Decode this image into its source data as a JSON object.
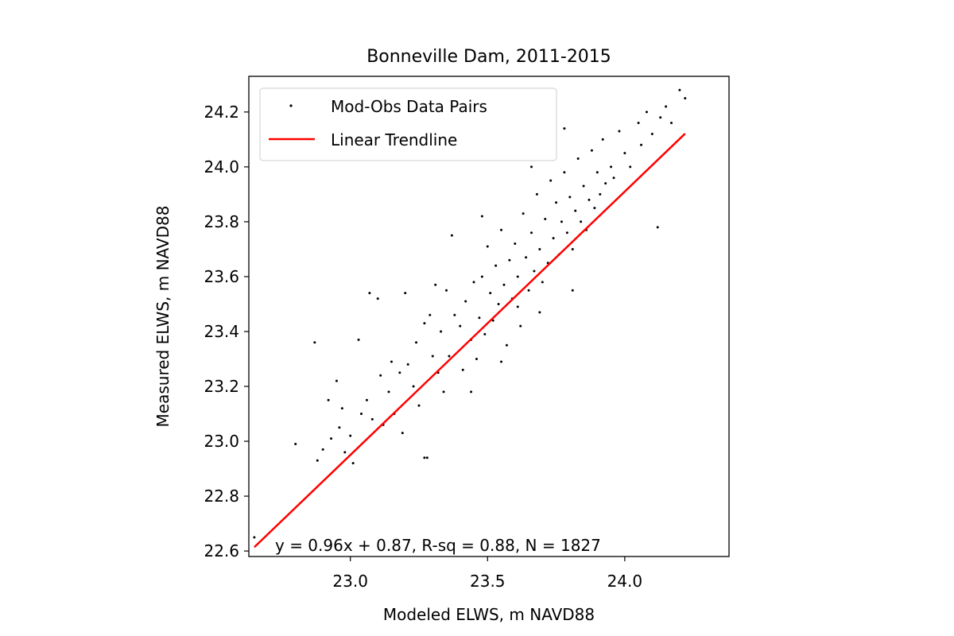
{
  "chart_data": {
    "type": "scatter",
    "title": "Bonneville Dam, 2011-2015",
    "xlabel": "Modeled ELWS, m NAVD88",
    "ylabel": "Measured ELWS, m NAVD88",
    "xlim": [
      22.63,
      24.38
    ],
    "ylim": [
      22.58,
      24.33
    ],
    "xticks": [
      {
        "value": 23.0,
        "label": "23.0"
      },
      {
        "value": 23.5,
        "label": "23.5"
      },
      {
        "value": 24.0,
        "label": "24.0"
      }
    ],
    "yticks": [
      {
        "value": 22.6,
        "label": "22.6"
      },
      {
        "value": 22.8,
        "label": "22.8"
      },
      {
        "value": 23.0,
        "label": "23.0"
      },
      {
        "value": 23.2,
        "label": "23.2"
      },
      {
        "value": 23.4,
        "label": "23.4"
      },
      {
        "value": 23.6,
        "label": "23.6"
      },
      {
        "value": 23.8,
        "label": "23.8"
      },
      {
        "value": 24.0,
        "label": "24.0"
      },
      {
        "value": 24.2,
        "label": "24.2"
      }
    ],
    "grid": false,
    "legend": {
      "placement": "upper-left",
      "entries": [
        {
          "label": "Mod-Obs Data Pairs",
          "marker": "dot",
          "color": "#000000"
        },
        {
          "label": "Linear Trendline",
          "marker": "line",
          "color": "#ff0000"
        }
      ]
    },
    "annotation": "y = 0.96x + 0.87, R-sq = 0.88, N = 1827",
    "series": [
      {
        "name": "Mod-Obs Data Pairs",
        "color": "#000000",
        "points": [
          [
            22.65,
            22.65
          ],
          [
            22.8,
            22.99
          ],
          [
            22.87,
            23.36
          ],
          [
            22.88,
            22.93
          ],
          [
            22.9,
            22.97
          ],
          [
            22.92,
            23.15
          ],
          [
            22.93,
            23.01
          ],
          [
            22.95,
            23.22
          ],
          [
            22.96,
            23.05
          ],
          [
            22.97,
            23.12
          ],
          [
            22.98,
            22.96
          ],
          [
            23.0,
            23.02
          ],
          [
            23.01,
            22.92
          ],
          [
            23.03,
            23.37
          ],
          [
            23.04,
            23.1
          ],
          [
            23.06,
            23.15
          ],
          [
            23.07,
            23.54
          ],
          [
            23.08,
            23.08
          ],
          [
            23.1,
            23.52
          ],
          [
            23.11,
            23.24
          ],
          [
            23.12,
            23.06
          ],
          [
            23.14,
            23.18
          ],
          [
            23.15,
            23.29
          ],
          [
            23.16,
            23.1
          ],
          [
            23.18,
            23.25
          ],
          [
            23.19,
            23.03
          ],
          [
            23.2,
            23.54
          ],
          [
            23.21,
            23.28
          ],
          [
            23.23,
            23.2
          ],
          [
            23.24,
            23.36
          ],
          [
            23.25,
            23.13
          ],
          [
            23.27,
            22.94
          ],
          [
            23.28,
            22.94
          ],
          [
            23.29,
            23.46
          ],
          [
            23.3,
            23.31
          ],
          [
            23.31,
            23.57
          ],
          [
            23.32,
            23.25
          ],
          [
            23.33,
            23.4
          ],
          [
            23.34,
            23.18
          ],
          [
            23.36,
            23.31
          ],
          [
            23.37,
            23.75
          ],
          [
            23.38,
            23.46
          ],
          [
            23.4,
            23.42
          ],
          [
            23.41,
            23.26
          ],
          [
            23.42,
            23.51
          ],
          [
            23.44,
            23.37
          ],
          [
            23.45,
            23.58
          ],
          [
            23.46,
            23.3
          ],
          [
            23.47,
            23.45
          ],
          [
            23.48,
            23.6
          ],
          [
            23.49,
            23.39
          ],
          [
            23.5,
            23.71
          ],
          [
            23.51,
            23.54
          ],
          [
            23.52,
            23.44
          ],
          [
            23.53,
            23.64
          ],
          [
            23.54,
            23.5
          ],
          [
            23.55,
            23.77
          ],
          [
            23.56,
            23.57
          ],
          [
            23.57,
            23.35
          ],
          [
            23.58,
            23.66
          ],
          [
            23.59,
            23.52
          ],
          [
            23.6,
            23.72
          ],
          [
            23.61,
            23.6
          ],
          [
            23.62,
            23.42
          ],
          [
            23.63,
            23.83
          ],
          [
            23.64,
            23.67
          ],
          [
            23.65,
            23.55
          ],
          [
            23.66,
            23.76
          ],
          [
            23.67,
            23.62
          ],
          [
            23.68,
            23.9
          ],
          [
            23.69,
            23.7
          ],
          [
            23.7,
            23.58
          ],
          [
            23.71,
            23.81
          ],
          [
            23.72,
            23.65
          ],
          [
            23.73,
            23.95
          ],
          [
            23.74,
            23.74
          ],
          [
            23.75,
            23.87
          ],
          [
            23.76,
            23.68
          ],
          [
            23.77,
            23.8
          ],
          [
            23.78,
            23.98
          ],
          [
            23.79,
            23.76
          ],
          [
            23.8,
            23.89
          ],
          [
            23.81,
            23.7
          ],
          [
            23.82,
            23.84
          ],
          [
            23.83,
            24.03
          ],
          [
            23.84,
            23.8
          ],
          [
            23.85,
            23.93
          ],
          [
            23.86,
            23.77
          ],
          [
            23.87,
            23.88
          ],
          [
            23.88,
            24.06
          ],
          [
            23.89,
            23.85
          ],
          [
            23.9,
            23.98
          ],
          [
            23.91,
            23.9
          ],
          [
            23.92,
            24.1
          ],
          [
            23.93,
            23.94
          ],
          [
            23.95,
            24.0
          ],
          [
            23.96,
            23.96
          ],
          [
            23.98,
            24.13
          ],
          [
            24.0,
            24.05
          ],
          [
            24.02,
            24.0
          ],
          [
            24.05,
            24.16
          ],
          [
            24.06,
            24.08
          ],
          [
            24.08,
            24.2
          ],
          [
            24.1,
            24.12
          ],
          [
            24.12,
            23.78
          ],
          [
            24.13,
            24.18
          ],
          [
            24.15,
            24.22
          ],
          [
            24.17,
            24.16
          ],
          [
            24.2,
            24.28
          ],
          [
            24.22,
            24.25
          ],
          [
            23.44,
            23.18
          ],
          [
            23.55,
            23.29
          ],
          [
            23.61,
            23.49
          ],
          [
            23.78,
            24.14
          ],
          [
            23.69,
            23.47
          ],
          [
            23.35,
            23.55
          ],
          [
            23.66,
            24.0
          ],
          [
            23.48,
            23.82
          ],
          [
            23.27,
            23.43
          ],
          [
            23.81,
            23.55
          ]
        ]
      },
      {
        "name": "Linear Trendline",
        "color": "#ff0000",
        "line": {
          "slope": 0.96,
          "intercept": 0.87,
          "x_start": 22.65,
          "x_end": 24.22
        }
      }
    ]
  }
}
